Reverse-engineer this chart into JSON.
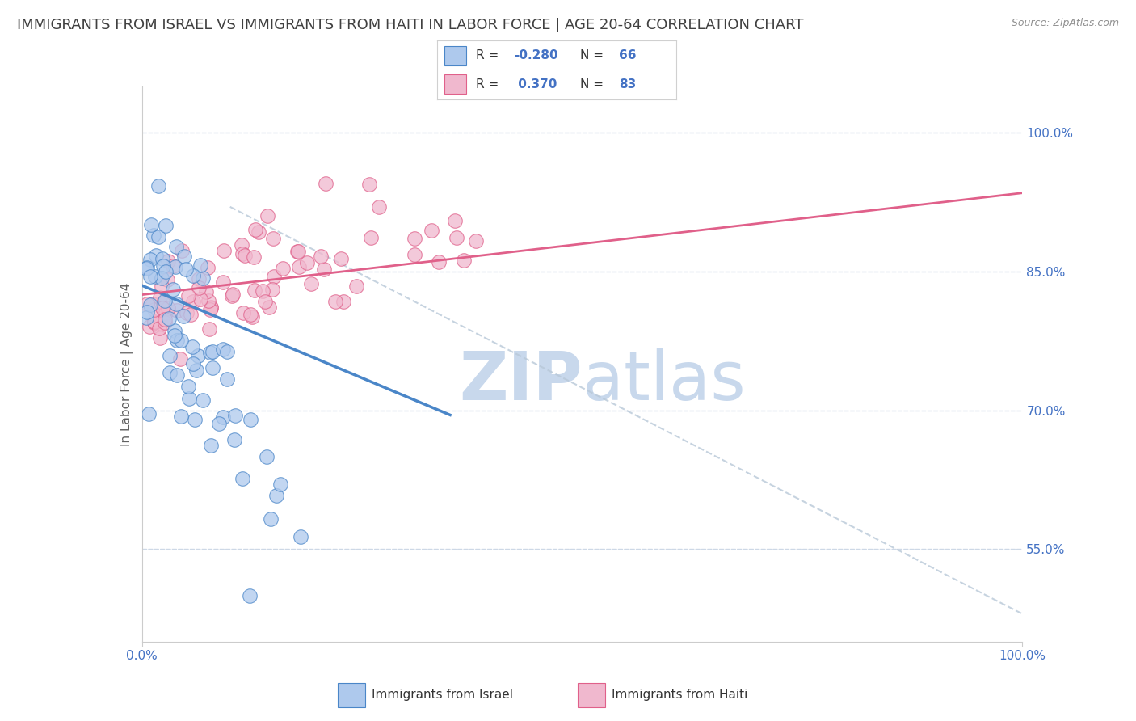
{
  "title": "IMMIGRANTS FROM ISRAEL VS IMMIGRANTS FROM HAITI IN LABOR FORCE | AGE 20-64 CORRELATION CHART",
  "source": "Source: ZipAtlas.com",
  "ylabel": "In Labor Force | Age 20-64",
  "legend_label1": "Immigrants from Israel",
  "legend_label2": "Immigrants from Haiti",
  "R_israel": -0.28,
  "N_israel": 66,
  "R_haiti": 0.37,
  "N_haiti": 83,
  "color_israel_fill": "#aec9ed",
  "color_israel_edge": "#4a86c8",
  "color_haiti_fill": "#f0b8ce",
  "color_haiti_edge": "#e0608a",
  "color_israel_line": "#4a86c8",
  "color_haiti_line": "#e0608a",
  "color_text_blue": "#4472c4",
  "watermark_color": "#c8d8ec",
  "background_color": "#ffffff",
  "grid_color": "#c8d4e4",
  "title_color": "#404040",
  "title_fontsize": 13,
  "axis_label_fontsize": 11,
  "tick_fontsize": 11,
  "xlim": [
    0.0,
    1.0
  ],
  "ylim": [
    0.45,
    1.05
  ],
  "yticks": [
    0.55,
    0.7,
    0.85,
    1.0
  ],
  "xticks": [
    0.0,
    1.0
  ]
}
